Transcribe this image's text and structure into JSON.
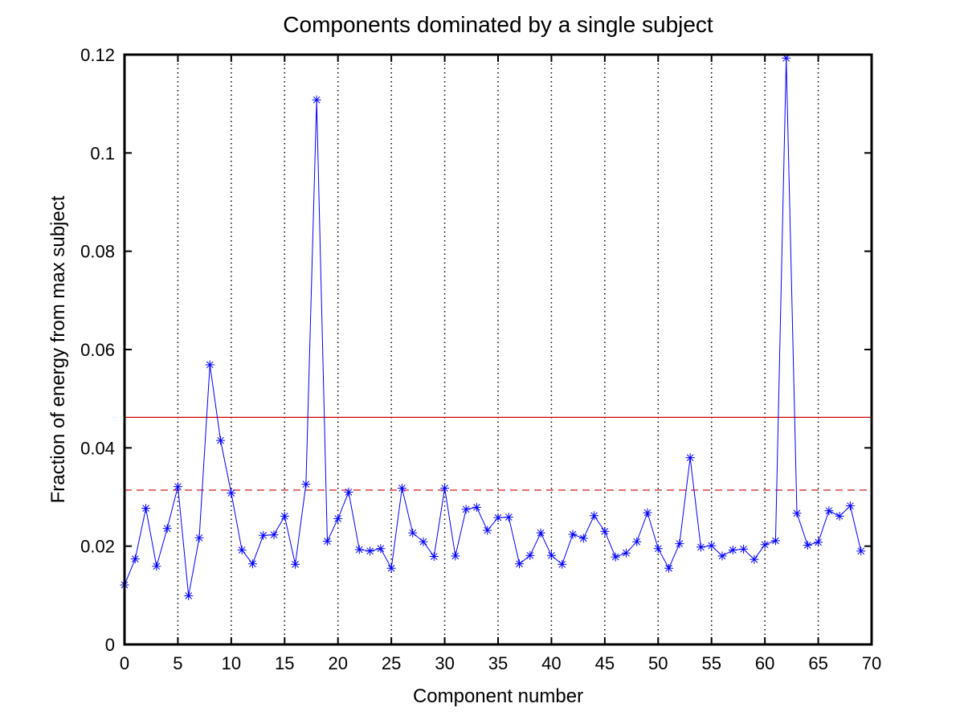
{
  "chart_data": {
    "type": "line",
    "title": "Components dominated by a single subject",
    "xlabel": "Component number",
    "ylabel": "Fraction of energy from max subject",
    "xlim": [
      0,
      70
    ],
    "ylim": [
      0,
      0.12
    ],
    "x_ticks": [
      0,
      5,
      10,
      15,
      20,
      25,
      30,
      35,
      40,
      45,
      50,
      55,
      60,
      65,
      70
    ],
    "y_ticks": [
      0,
      0.02,
      0.04,
      0.06,
      0.08,
      0.1,
      0.12
    ],
    "x_tick_labels": [
      "0",
      "5",
      "10",
      "15",
      "20",
      "25",
      "30",
      "35",
      "40",
      "45",
      "50",
      "55",
      "60",
      "65",
      "70"
    ],
    "y_tick_labels": [
      "0",
      "0.02",
      "0.04",
      "0.06",
      "0.08",
      "0.1",
      "0.12"
    ],
    "grid": "vertical dotted lines at x ticks",
    "series": [
      {
        "color": "#0000ff",
        "marker": "asterisk",
        "x": [
          0,
          1,
          2,
          3,
          4,
          5,
          6,
          7,
          8,
          9,
          10,
          11,
          12,
          13,
          14,
          15,
          16,
          17,
          18,
          19,
          20,
          21,
          22,
          23,
          24,
          25,
          26,
          27,
          28,
          29,
          30,
          31,
          32,
          33,
          34,
          35,
          36,
          37,
          38,
          39,
          40,
          41,
          42,
          43,
          44,
          45,
          46,
          47,
          48,
          49,
          50,
          51,
          52,
          53,
          54,
          55,
          56,
          57,
          58,
          59,
          60,
          61,
          62,
          63,
          64,
          65,
          66,
          67,
          68,
          69
        ],
        "y": [
          0.0121,
          0.0174,
          0.0277,
          0.0159,
          0.0236,
          0.0321,
          0.0099,
          0.0217,
          0.0569,
          0.0415,
          0.0308,
          0.0192,
          0.0164,
          0.0222,
          0.0223,
          0.0261,
          0.0163,
          0.0326,
          0.1108,
          0.021,
          0.0256,
          0.031,
          0.0193,
          0.019,
          0.0195,
          0.0155,
          0.0318,
          0.0227,
          0.0209,
          0.0179,
          0.0318,
          0.018,
          0.0275,
          0.0279,
          0.0232,
          0.0258,
          0.0259,
          0.0164,
          0.0181,
          0.0227,
          0.0181,
          0.0163,
          0.0224,
          0.0216,
          0.0262,
          0.023,
          0.0178,
          0.0186,
          0.0209,
          0.0268,
          0.0195,
          0.0155,
          0.0205,
          0.038,
          0.0198,
          0.0201,
          0.018,
          0.0192,
          0.0194,
          0.0173,
          0.0203,
          0.0211,
          0.1193,
          0.0267,
          0.0202,
          0.0208,
          0.0272,
          0.0261,
          0.0282,
          0.019
        ]
      }
    ],
    "reference_lines": [
      {
        "y": 0.0462,
        "color": "#cc0000",
        "style": "solid"
      },
      {
        "y": 0.0314,
        "color": "#cc0000",
        "style": "dashed"
      }
    ]
  }
}
